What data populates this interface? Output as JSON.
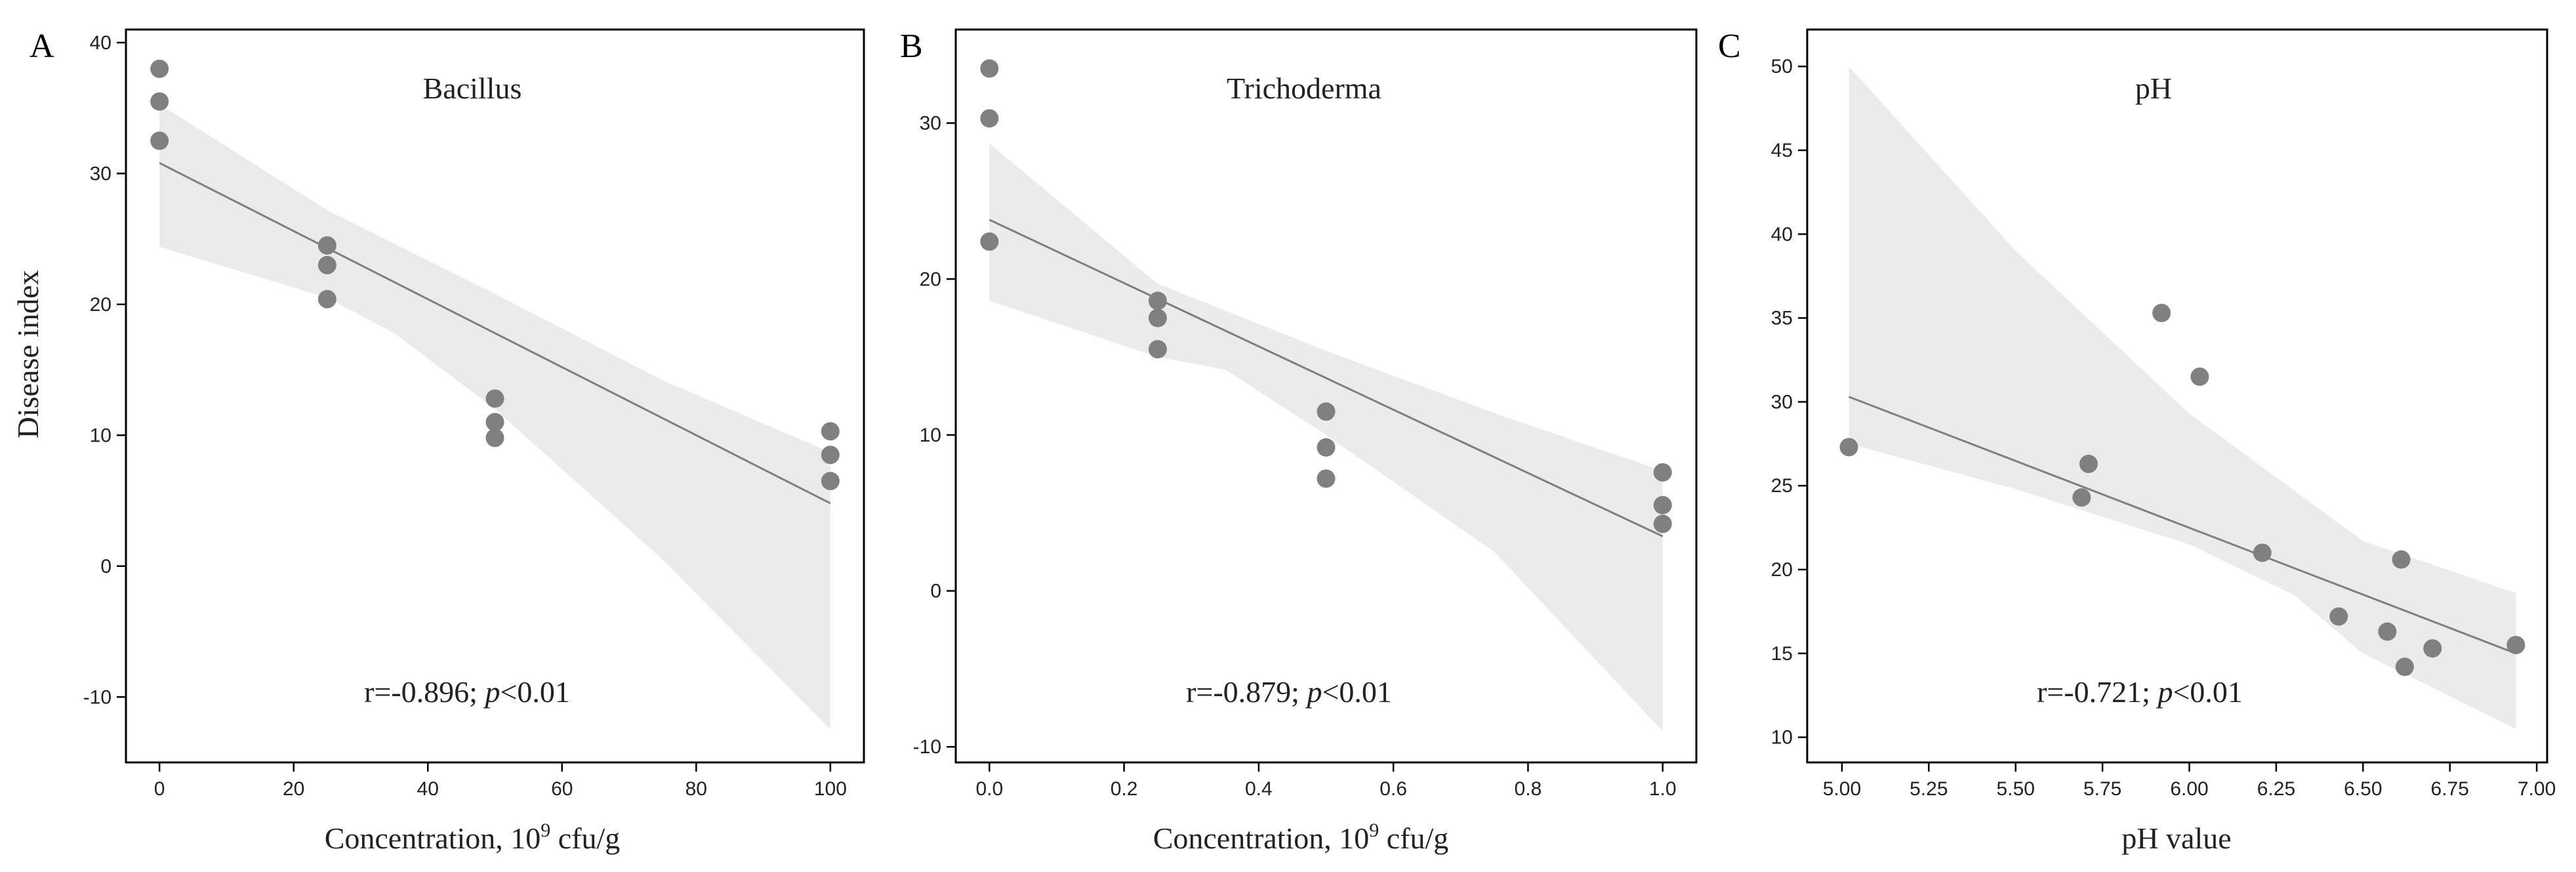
{
  "chart_data": [
    {
      "type": "scatter",
      "panel": "A",
      "title": "Bacillus",
      "xlabel": "Concentration, 10",
      "xlabel_sup": "9",
      "xlabel_unit": " cfu/g",
      "ylabel": "Disease index",
      "annotation_r": "r=-0.896; ",
      "annotation_p": "p",
      "annotation_tail": "<0.01",
      "xlim": [
        -5,
        105
      ],
      "ylim": [
        -15,
        41
      ],
      "xticks": [
        0,
        20,
        40,
        60,
        80,
        100
      ],
      "yticks": [
        -10,
        0,
        10,
        20,
        30,
        40
      ],
      "tick_decimals_x": 0,
      "tick_decimals_y": 0,
      "x": [
        0,
        0,
        0,
        25,
        25,
        25,
        50,
        50,
        50,
        100,
        100,
        100
      ],
      "y": [
        38.0,
        35.5,
        32.5,
        24.5,
        23.0,
        20.4,
        12.8,
        11.0,
        9.8,
        10.3,
        8.5,
        6.5
      ],
      "fit": {
        "x": [
          0,
          100
        ],
        "y": [
          30.8,
          4.8
        ]
      },
      "ci_upper": [
        [
          0,
          35.3
        ],
        [
          25,
          27.2
        ],
        [
          50,
          20.8
        ],
        [
          75,
          14.2
        ],
        [
          100,
          8.7
        ]
      ],
      "ci_lower": [
        [
          0,
          24.4
        ],
        [
          25,
          20.5
        ],
        [
          35,
          17.8
        ],
        [
          50,
          12.0
        ],
        [
          75,
          0.5
        ],
        [
          100,
          -12.5
        ]
      ]
    },
    {
      "type": "scatter",
      "panel": "B",
      "title": "Trichoderma",
      "xlabel": "Concentration, 10",
      "xlabel_sup": "9",
      "xlabel_unit": " cfu/g",
      "ylabel": "",
      "annotation_r": "r=-0.879; ",
      "annotation_p": "p",
      "annotation_tail": "<0.01",
      "xlim": [
        -0.05,
        1.05
      ],
      "ylim": [
        -11,
        36
      ],
      "xticks": [
        0.0,
        0.2,
        0.4,
        0.6,
        0.8,
        1.0
      ],
      "yticks": [
        -10,
        0,
        10,
        20,
        30
      ],
      "tick_decimals_x": 1,
      "tick_decimals_y": 0,
      "x": [
        0,
        0,
        0,
        0.25,
        0.25,
        0.25,
        0.5,
        0.5,
        0.5,
        1.0,
        1.0,
        1.0
      ],
      "y": [
        33.5,
        30.3,
        22.4,
        18.6,
        17.5,
        15.5,
        11.5,
        9.2,
        7.2,
        7.6,
        5.5,
        4.3
      ],
      "fit": {
        "x": [
          0,
          1.0
        ],
        "y": [
          23.8,
          3.5
        ]
      },
      "ci_upper": [
        [
          0,
          28.7
        ],
        [
          0.25,
          19.7
        ],
        [
          0.5,
          15.4
        ],
        [
          0.75,
          11.4
        ],
        [
          1.0,
          7.7
        ]
      ],
      "ci_lower": [
        [
          0,
          18.6
        ],
        [
          0.25,
          15.0
        ],
        [
          0.35,
          14.2
        ],
        [
          0.5,
          10.0
        ],
        [
          0.75,
          2.5
        ],
        [
          1.0,
          -9.0
        ]
      ]
    },
    {
      "type": "scatter",
      "panel": "C",
      "title": "pH",
      "xlabel": "pH value",
      "xlabel_sup": "",
      "xlabel_unit": "",
      "ylabel": "",
      "annotation_r": "r=-0.721; ",
      "annotation_p": "p",
      "annotation_tail": "<0.01",
      "xlim": [
        4.9,
        7.03
      ],
      "ylim": [
        8.5,
        52.2
      ],
      "xticks": [
        5.0,
        5.25,
        5.5,
        5.75,
        6.0,
        6.25,
        6.5,
        6.75,
        7.0
      ],
      "yticks": [
        10,
        15,
        20,
        25,
        30,
        35,
        40,
        45,
        50
      ],
      "tick_decimals_x": 2,
      "tick_decimals_y": 0,
      "x": [
        5.02,
        5.69,
        5.71,
        5.92,
        6.03,
        6.21,
        6.43,
        6.57,
        6.61,
        6.62,
        6.7,
        6.94
      ],
      "y": [
        27.3,
        24.3,
        26.3,
        35.3,
        31.5,
        21.0,
        17.2,
        16.3,
        20.6,
        14.2,
        15.3,
        15.5
      ],
      "fit": {
        "x": [
          5.02,
          6.94
        ],
        "y": [
          30.3,
          15.0
        ]
      },
      "ci_upper": [
        [
          5.02,
          50.0
        ],
        [
          5.5,
          39.0
        ],
        [
          6.0,
          29.3
        ],
        [
          6.5,
          21.7
        ],
        [
          6.94,
          18.6
        ]
      ],
      "ci_lower": [
        [
          5.02,
          27.5
        ],
        [
          5.5,
          24.8
        ],
        [
          6.0,
          21.5
        ],
        [
          6.3,
          18.5
        ],
        [
          6.5,
          15.0
        ],
        [
          6.94,
          10.5
        ]
      ]
    }
  ]
}
